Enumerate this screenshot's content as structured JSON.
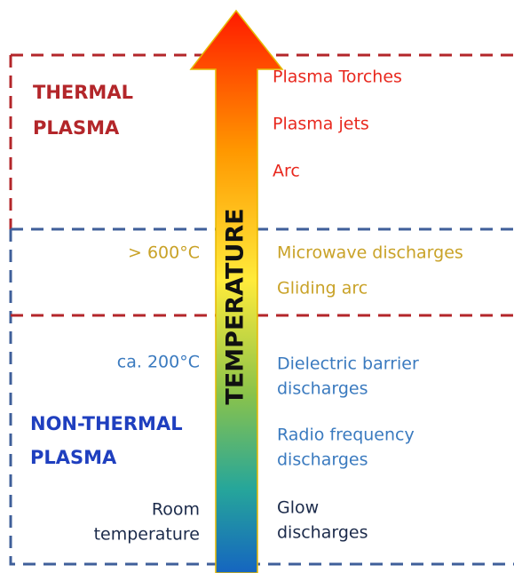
{
  "axis_label": "TEMPERATURE",
  "regions": {
    "thermal": {
      "lines": [
        "THERMAL",
        "PLASMA"
      ]
    },
    "non_thermal": {
      "lines": [
        "NON-THERMAL",
        "PLASMA"
      ]
    }
  },
  "temperatures": [
    {
      "lines": [
        "> 600°C"
      ]
    },
    {
      "lines": [
        "ca. 200°C"
      ]
    },
    {
      "lines": [
        "Room",
        "temperature"
      ]
    }
  ],
  "techniques": [
    {
      "lines": [
        "Plasma Torches"
      ]
    },
    {
      "lines": [
        "Plasma jets"
      ]
    },
    {
      "lines": [
        "Arc"
      ]
    },
    {
      "lines": [
        "Microwave discharges"
      ]
    },
    {
      "lines": [
        "Gliding arc"
      ]
    },
    {
      "lines": [
        "Dielectric barrier",
        "discharges"
      ]
    },
    {
      "lines": [
        "Radio frequency",
        "discharges"
      ]
    },
    {
      "lines": [
        "Glow",
        "discharges"
      ]
    }
  ]
}
